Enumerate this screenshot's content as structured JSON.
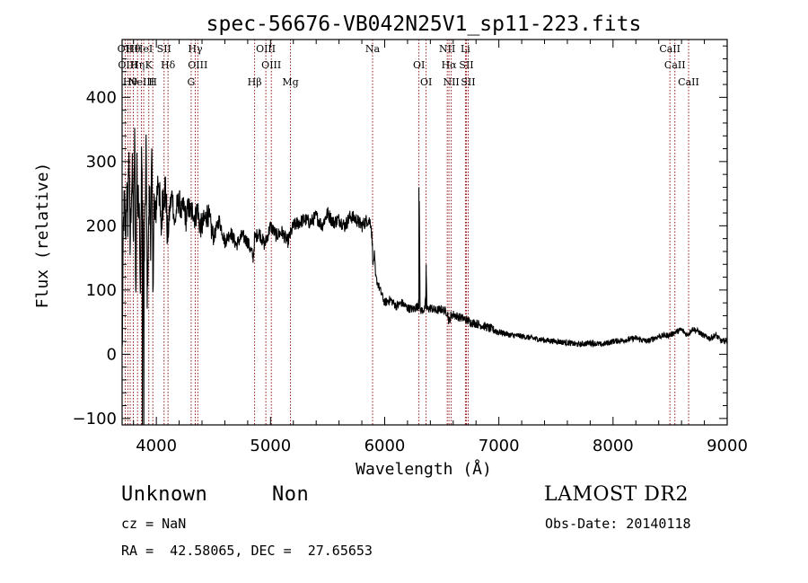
{
  "chart_data": {
    "type": "line",
    "title": "spec-56676-VB042N25V1_sp11-223.fits",
    "xlabel": "Wavelength (Å)",
    "ylabel": "Flux (relative)",
    "xlim": [
      3700,
      9000
    ],
    "ylim": [
      -110,
      490
    ],
    "xticks": [
      4000,
      5000,
      6000,
      7000,
      8000,
      9000
    ],
    "yticks": [
      -100,
      0,
      100,
      200,
      300,
      400
    ],
    "grid": false,
    "line_color": "#000000",
    "marker_color": "#8b0000",
    "series": [
      {
        "x": [
          3700,
          3705,
          3710,
          3720,
          3730,
          3740,
          3750,
          3760,
          3770,
          3780,
          3790,
          3800,
          3810,
          3820,
          3830,
          3840,
          3850,
          3860,
          3870,
          3880,
          3890,
          3900,
          3910,
          3920,
          3930,
          3940,
          3950,
          3960,
          3970,
          3980,
          3990,
          4000,
          4020,
          4040,
          4060,
          4080,
          4100,
          4120,
          4140,
          4160,
          4180,
          4200,
          4220,
          4240,
          4260,
          4280,
          4300,
          4320,
          4340,
          4360,
          4380,
          4400,
          4450,
          4500,
          4550,
          4600,
          4650,
          4700,
          4750,
          4800,
          4850,
          4860,
          4900,
          4950,
          5000,
          5050,
          5100,
          5150,
          5200,
          5250,
          5300,
          5350,
          5400,
          5450,
          5500,
          5550,
          5600,
          5650,
          5700,
          5750,
          5800,
          5850,
          5880,
          5890,
          5900,
          5910,
          5920,
          5940,
          5960,
          5980,
          6000,
          6050,
          6100,
          6150,
          6200,
          6250,
          6290,
          6300,
          6302,
          6310,
          6320,
          6350,
          6360,
          6363,
          6370,
          6400,
          6450,
          6500,
          6550,
          6563,
          6580,
          6600,
          6650,
          6700,
          6750,
          6800,
          6850,
          6900,
          6950,
          7000,
          7100,
          7200,
          7300,
          7400,
          7500,
          7600,
          7700,
          7800,
          7900,
          8000,
          8100,
          8200,
          8300,
          8400,
          8500,
          8550,
          8600,
          8650,
          8700,
          8750,
          8800,
          8850,
          8900,
          8950,
          9000
        ],
        "y": [
          0,
          60,
          190,
          240,
          180,
          260,
          210,
          330,
          160,
          250,
          280,
          180,
          350,
          90,
          300,
          220,
          270,
          70,
          320,
          240,
          120,
          200,
          330,
          100,
          170,
          260,
          180,
          300,
          110,
          240,
          200,
          240,
          280,
          190,
          250,
          260,
          180,
          230,
          250,
          200,
          230,
          240,
          220,
          230,
          210,
          230,
          220,
          225,
          210,
          230,
          200,
          200,
          220,
          180,
          210,
          175,
          190,
          170,
          185,
          175,
          150,
          180,
          190,
          170,
          200,
          185,
          190,
          175,
          200,
          205,
          210,
          205,
          215,
          200,
          220,
          205,
          210,
          200,
          215,
          210,
          200,
          210,
          205,
          175,
          140,
          155,
          120,
          110,
          100,
          90,
          80,
          85,
          75,
          80,
          72,
          70,
          75,
          90,
          255,
          70,
          68,
          70,
          85,
          140,
          70,
          72,
          68,
          70,
          65,
          50,
          60,
          62,
          58,
          55,
          50,
          48,
          45,
          42,
          38,
          35,
          30,
          28,
          25,
          22,
          20,
          18,
          15,
          18,
          15,
          20,
          22,
          25,
          20,
          28,
          30,
          35,
          38,
          30,
          40,
          35,
          28,
          25,
          30,
          20,
          22
        ]
      }
    ],
    "line_markers": [
      {
        "wavelength": 3727,
        "label": "OII"
      },
      {
        "wavelength": 3750,
        "label": "OIII"
      },
      {
        "wavelength": 3771,
        "label": "Hθ"
      },
      {
        "wavelength": 3798,
        "label": "Hθ"
      },
      {
        "wavelength": 3835,
        "label": "Hη"
      },
      {
        "wavelength": 3869,
        "label": "NeIII"
      },
      {
        "wavelength": 3889,
        "label": "HeI"
      },
      {
        "wavelength": 3934,
        "label": "K"
      },
      {
        "wavelength": 3969,
        "label": "H"
      },
      {
        "wavelength": 4068,
        "label": "SII"
      },
      {
        "wavelength": 4102,
        "label": "Hδ"
      },
      {
        "wavelength": 4305,
        "label": "G"
      },
      {
        "wavelength": 4341,
        "label": "Hγ"
      },
      {
        "wavelength": 4363,
        "label": "OIII"
      },
      {
        "wavelength": 4861,
        "label": "Hβ"
      },
      {
        "wavelength": 4959,
        "label": "OIII"
      },
      {
        "wavelength": 5007,
        "label": "OIII"
      },
      {
        "wavelength": 5175,
        "label": "Mg"
      },
      {
        "wavelength": 5894,
        "label": "Na"
      },
      {
        "wavelength": 6300,
        "label": "OI"
      },
      {
        "wavelength": 6363,
        "label": "OI"
      },
      {
        "wavelength": 6548,
        "label": "NII"
      },
      {
        "wavelength": 6563,
        "label": "Hα"
      },
      {
        "wavelength": 6583,
        "label": "NII"
      },
      {
        "wavelength": 6707,
        "label": "Li"
      },
      {
        "wavelength": 6716,
        "label": "SII"
      },
      {
        "wavelength": 6731,
        "label": "SII"
      },
      {
        "wavelength": 8498,
        "label": "CaII"
      },
      {
        "wavelength": 8542,
        "label": "CaII"
      },
      {
        "wavelength": 8662,
        "label": "CaII"
      }
    ]
  },
  "info": {
    "object_class": "Unknown",
    "subclass": "Non",
    "survey": "LAMOST DR2",
    "cz": "cz = NaN",
    "obs_date": "Obs-Date: 20140118",
    "coords": "RA =  42.58065, DEC =  27.65653"
  }
}
